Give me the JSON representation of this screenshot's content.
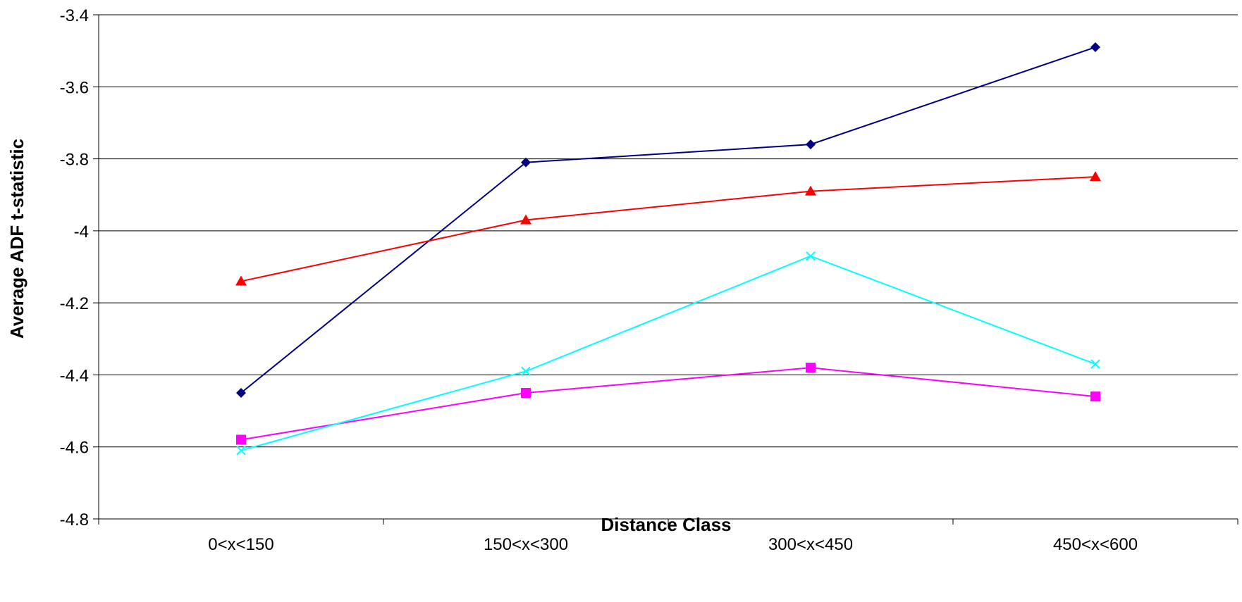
{
  "chart_data": {
    "type": "line",
    "title": "",
    "xlabel": "Distance Class",
    "ylabel": "Average ADF t-statistic",
    "categories": [
      "0<x<150",
      "150<x<300",
      "300<x<450",
      "450<x<600"
    ],
    "ylim": [
      -4.8,
      -3.4
    ],
    "yticks": [
      -3.4,
      -3.6,
      -3.8,
      -4,
      -4.2,
      -4.4,
      -4.6,
      -4.8
    ],
    "ytick_labels": [
      "-3.4",
      "-3.6",
      "-3.8",
      "-4",
      "-4.2",
      "-4.4",
      "-4.6",
      "-4.8"
    ],
    "grid": "horizontal",
    "legend": "none",
    "series": [
      {
        "color": "#000080",
        "marker": "diamond",
        "values": [
          -4.45,
          -3.81,
          -3.76,
          -3.49
        ]
      },
      {
        "color": "#ff00ff",
        "marker": "square",
        "values": [
          -4.58,
          -4.45,
          -4.38,
          -4.46
        ]
      },
      {
        "color": "#ff0000",
        "marker": "triangle",
        "values": [
          -4.14,
          -3.97,
          -3.89,
          -3.85
        ]
      },
      {
        "color": "#00ffff",
        "marker": "x",
        "values": [
          -4.61,
          -4.39,
          -4.07,
          -4.37
        ]
      }
    ]
  }
}
